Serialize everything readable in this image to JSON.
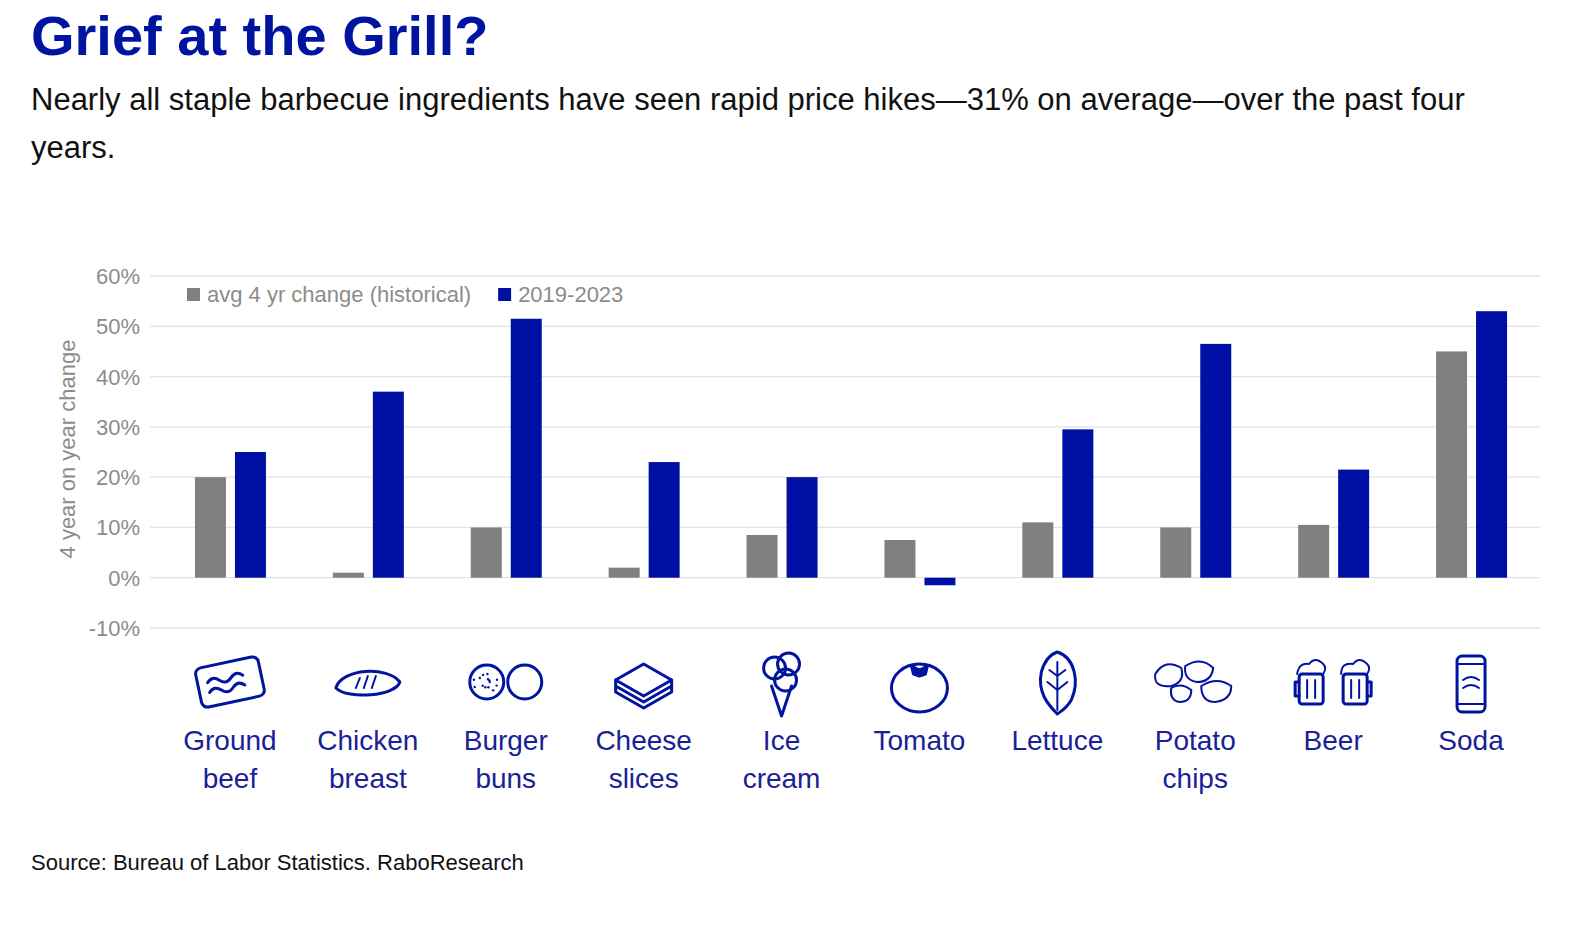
{
  "chart_data": {
    "type": "bar",
    "title": "Grief at the Grill?",
    "subtitle": "Nearly all staple barbecue ingredients have seen rapid price hikes—31% on average—over the past four years.",
    "y_label": "4 year on year change",
    "source": "Source: Bureau of Labor Statistics. RaboResearch",
    "categories": [
      "Ground beef",
      "Chicken breast",
      "Burger buns",
      "Cheese slices",
      "Ice cream",
      "Tomato",
      "Lettuce",
      "Potato chips",
      "Beer",
      "Soda"
    ],
    "series": [
      {
        "name": "avg 4 yr change (historical)",
        "color": "#808080",
        "values": [
          20,
          1,
          10,
          2,
          8.5,
          7.5,
          11,
          10,
          10.5,
          45
        ]
      },
      {
        "name": "2019-2023",
        "color": "#0010a5",
        "values": [
          25,
          37,
          51.5,
          23,
          20,
          -1.5,
          29.5,
          46.5,
          21.5,
          53
        ]
      }
    ],
    "ylim": [
      -10,
      60
    ],
    "yticks": [
      {
        "value": -10,
        "label": "-10%"
      },
      {
        "value": 0,
        "label": "0%"
      },
      {
        "value": 10,
        "label": "10%"
      },
      {
        "value": 20,
        "label": "20%"
      },
      {
        "value": 30,
        "label": "30%"
      },
      {
        "value": 40,
        "label": "40%"
      },
      {
        "value": 50,
        "label": "50%"
      },
      {
        "value": 60,
        "label": "60%"
      }
    ],
    "grid": true,
    "legend": "top-left"
  }
}
